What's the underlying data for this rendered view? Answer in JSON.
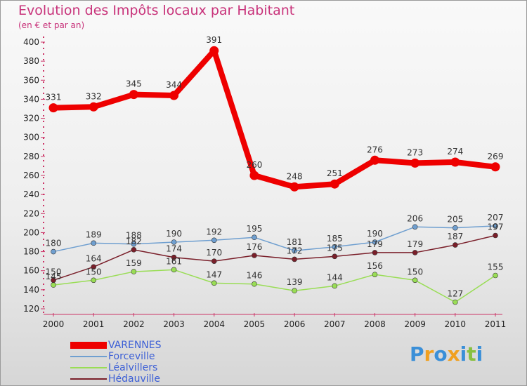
{
  "header": {
    "title": "Evolution des Impôts locaux par Habitant",
    "subtitle": "(en € et par an)"
  },
  "chart_data": {
    "type": "line",
    "title": "Evolution des Impôts locaux par Habitant",
    "subtitle": "(en € et par an)",
    "xlabel": "",
    "ylabel": "",
    "categories": [
      "2000",
      "2001",
      "2002",
      "2003",
      "2004",
      "2005",
      "2006",
      "2007",
      "2008",
      "2009",
      "2010",
      "2011"
    ],
    "ylim": [
      120,
      400
    ],
    "yticks": [
      120,
      140,
      160,
      180,
      200,
      220,
      240,
      260,
      280,
      300,
      320,
      340,
      360,
      380,
      400
    ],
    "grid": false,
    "legend_position": "bottom-left",
    "series": [
      {
        "name": "VARENNES",
        "color": "#ee0000",
        "values": [
          331,
          332,
          345,
          344,
          391,
          260,
          248,
          251,
          276,
          273,
          274,
          269
        ]
      },
      {
        "name": "Forceville",
        "color": "#6f9fd0",
        "values": [
          180,
          189,
          188,
          190,
          192,
          195,
          181,
          185,
          190,
          206,
          205,
          207
        ]
      },
      {
        "name": "Léalvillers",
        "color": "#99dd55",
        "values": [
          145,
          150,
          159,
          161,
          147,
          146,
          139,
          144,
          156,
          150,
          127,
          155
        ]
      },
      {
        "name": "Hédauville",
        "color": "#7a1f2a",
        "values": [
          150,
          164,
          182,
          174,
          170,
          176,
          172,
          175,
          179,
          179,
          187,
          197
        ]
      }
    ]
  },
  "logo": {
    "letters": [
      "P",
      "r",
      "o",
      "x",
      "i",
      "t",
      "i"
    ],
    "colors": [
      "#3a8fd8",
      "#f0a020",
      "#3a8fd8",
      "#f0a020",
      "#3a8fd8",
      "#88c040",
      "#3a8fd8"
    ]
  }
}
